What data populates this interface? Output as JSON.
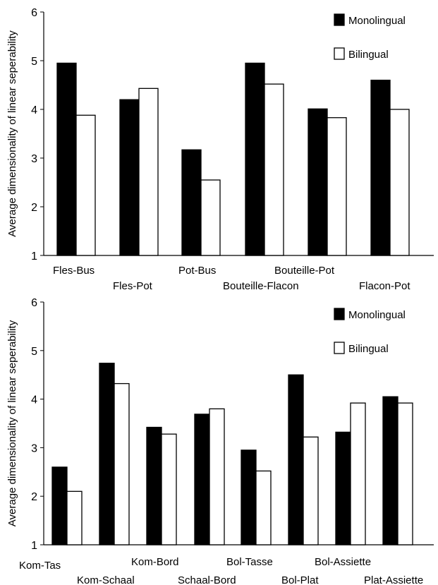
{
  "chart_data": [
    {
      "type": "bar",
      "ylabel": "Average dimensionality of linear seperability",
      "ylim": [
        1,
        6
      ],
      "yticks": [
        1,
        2,
        3,
        4,
        5,
        6
      ],
      "legend_position": "top-right",
      "categories": [
        "Fles-Bus",
        "Fles-Pot",
        "Pot-Bus",
        "Bouteille-Flacon",
        "Bouteille-Pot",
        "Flacon-Pot"
      ],
      "series": [
        {
          "name": "Monolingual",
          "color": "#000000",
          "values": [
            4.95,
            4.2,
            3.17,
            4.95,
            4.01,
            4.6
          ]
        },
        {
          "name": "Bilingual",
          "color": "#ffffff",
          "values": [
            3.88,
            4.43,
            2.55,
            4.52,
            3.83,
            4.0
          ]
        }
      ]
    },
    {
      "type": "bar",
      "ylabel": "Average dimensionality of linear seperability",
      "ylim": [
        1,
        6
      ],
      "yticks": [
        1,
        2,
        3,
        4,
        5,
        6
      ],
      "legend_position": "top-right",
      "categories": [
        "Kom-Tas",
        "Kom-Schaal",
        "Kom-Bord",
        "Schaal-Bord",
        "Bol-Tasse",
        "Bol-Plat",
        "Bol-Assiette",
        "Plat-Assiette"
      ],
      "series": [
        {
          "name": "Monolingual",
          "color": "#000000",
          "values": [
            2.6,
            4.74,
            3.42,
            3.69,
            2.95,
            4.5,
            3.32,
            4.05
          ]
        },
        {
          "name": "Bilingual",
          "color": "#ffffff",
          "values": [
            2.1,
            4.32,
            3.28,
            3.8,
            2.52,
            3.22,
            3.92,
            3.92
          ]
        }
      ]
    }
  ]
}
